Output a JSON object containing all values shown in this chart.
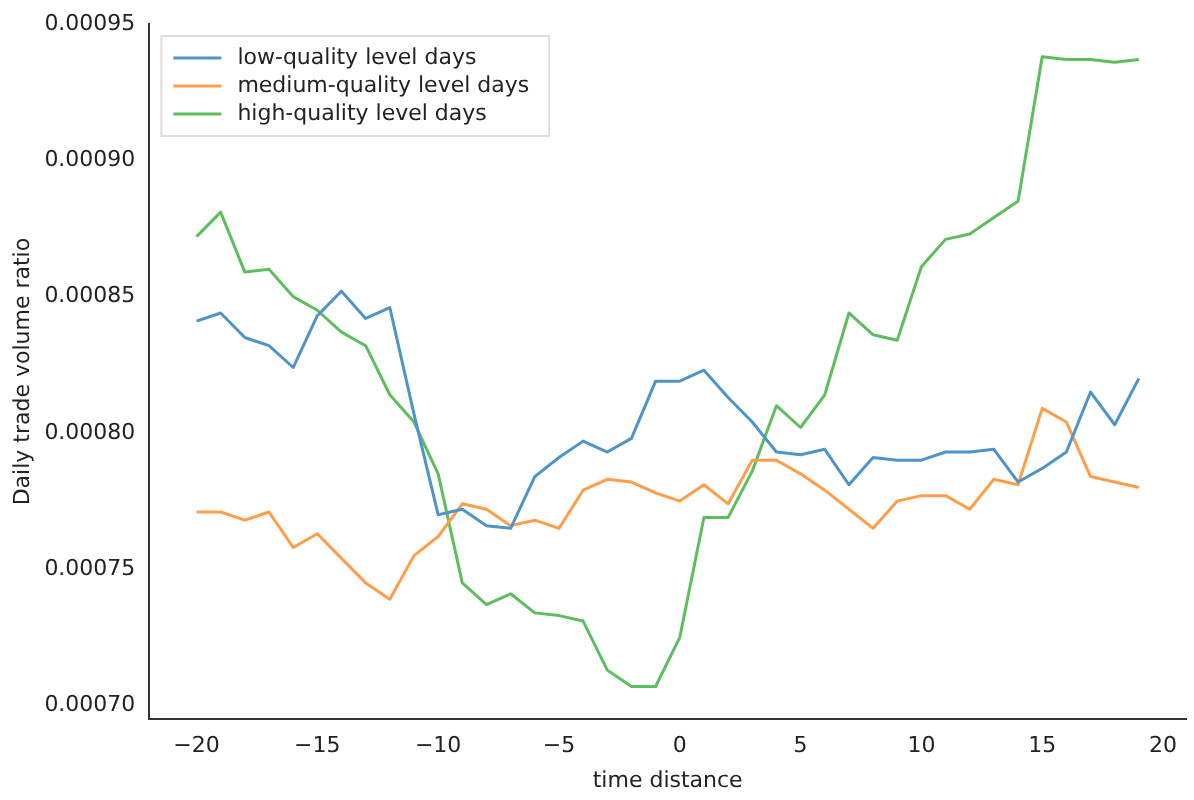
{
  "chart_data": {
    "type": "line",
    "xlabel": "time distance",
    "ylabel": "Daily trade volume ratio",
    "x": [
      -20,
      -19,
      -18,
      -17,
      -16,
      -15,
      -14,
      -13,
      -12,
      -11,
      -10,
      -9,
      -8,
      -7,
      -6,
      -5,
      -4,
      -3,
      -2,
      -1,
      0,
      1,
      2,
      3,
      4,
      5,
      6,
      7,
      8,
      9,
      10,
      11,
      12,
      13,
      14,
      15,
      16,
      17,
      18,
      19
    ],
    "series": [
      {
        "name": "low-quality level days",
        "color": "#4f94c8",
        "values": [
          0.000841,
          0.000844,
          0.000835,
          0.000832,
          0.000824,
          0.000843,
          0.000852,
          0.000842,
          0.000846,
          0.000807,
          0.00077,
          0.000772,
          0.000766,
          0.000765,
          0.000784,
          0.000791,
          0.000797,
          0.000793,
          0.000798,
          0.000819,
          0.000819,
          0.000823,
          0.000813,
          0.000804,
          0.000793,
          0.000792,
          0.000794,
          0.000781,
          0.000791,
          0.00079,
          0.00079,
          0.000793,
          0.000793,
          0.000794,
          0.000782,
          0.000787,
          0.000793,
          0.000815,
          0.000803,
          0.00082
        ]
      },
      {
        "name": "medium-quality level days",
        "color": "#ff9e4a",
        "values": [
          0.000771,
          0.000771,
          0.000768,
          0.000771,
          0.000758,
          0.000763,
          0.000754,
          0.000745,
          0.000739,
          0.000755,
          0.000762,
          0.000774,
          0.000772,
          0.000766,
          0.000768,
          0.000765,
          0.000779,
          0.000783,
          0.000782,
          0.000778,
          0.000775,
          0.000781,
          0.000774,
          0.00079,
          0.00079,
          0.000785,
          0.000779,
          0.000772,
          0.000765,
          0.000775,
          0.000777,
          0.000777,
          0.000772,
          0.000783,
          0.000781,
          0.000809,
          0.000804,
          0.000784,
          0.000782,
          0.00078
        ]
      },
      {
        "name": "high-quality level days",
        "color": "#5ebe5e",
        "values": [
          0.000872,
          0.000881,
          0.000859,
          0.00086,
          0.00085,
          0.000845,
          0.000837,
          0.000832,
          0.000814,
          0.000804,
          0.000785,
          0.000745,
          0.000737,
          0.000741,
          0.000734,
          0.000733,
          0.000731,
          0.000713,
          0.000707,
          0.000707,
          0.000725,
          0.000769,
          0.000769,
          0.000786,
          0.00081,
          0.000802,
          0.000814,
          0.000844,
          0.000836,
          0.000834,
          0.000861,
          0.000871,
          0.000873,
          0.000879,
          0.000885,
          0.000938,
          0.000937,
          0.000937,
          0.000936,
          0.000937
        ]
      }
    ],
    "xlim": [
      -21.95,
      20.95
    ],
    "xticks": [
      {
        "value": -20,
        "label": "−20"
      },
      {
        "value": -15,
        "label": "−15"
      },
      {
        "value": -10,
        "label": "−10"
      },
      {
        "value": -5,
        "label": "−5"
      },
      0,
      5,
      10,
      15,
      20
    ],
    "ylim": [
      0.000695,
      0.00095
    ],
    "yticks": [
      {
        "value": 0.0007,
        "label": "0.00070"
      },
      {
        "value": 0.00075,
        "label": "0.00075"
      },
      {
        "value": 0.0008,
        "label": "0.00080"
      },
      {
        "value": 0.00085,
        "label": "0.00085"
      },
      {
        "value": 0.0009,
        "label": "0.00090"
      },
      {
        "value": 0.00095,
        "label": "0.00095"
      }
    ],
    "grid": false,
    "legend": "top left",
    "marker": "none",
    "line_style": "solid"
  }
}
